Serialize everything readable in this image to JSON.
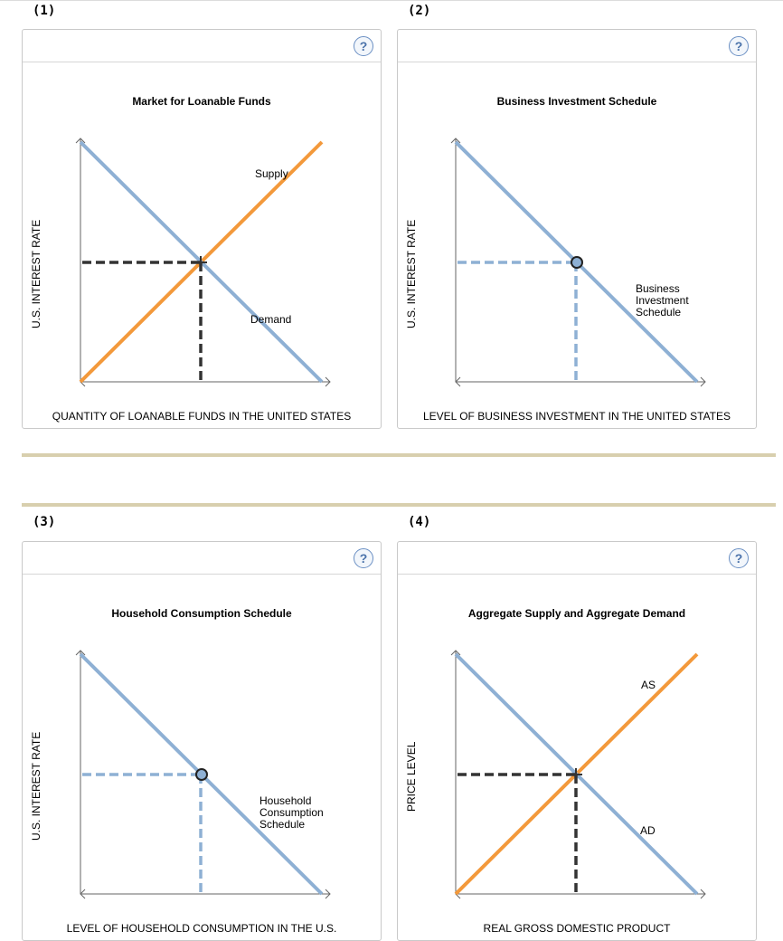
{
  "panels": [
    {
      "number": "(1)",
      "title": "Market for Loanable Funds",
      "xlabel": "QUANTITY OF LOANABLE FUNDS IN THE UNITED STATES",
      "ylabel": "U.S. INTEREST RATE",
      "help": "?",
      "curves": [
        {
          "label": "Supply",
          "color": "#f3993b",
          "direction": "up"
        },
        {
          "label": "Demand",
          "color": "#8eb0d4",
          "direction": "down"
        }
      ],
      "equilibrium_marker": "cross",
      "guide_color": "#333333"
    },
    {
      "number": "(2)",
      "title": "Business Investment Schedule",
      "xlabel": "LEVEL OF BUSINESS INVESTMENT IN THE UNITED STATES",
      "ylabel": "U.S. INTEREST RATE",
      "help": "?",
      "curves": [
        {
          "label": "Business\nInvestment\nSchedule",
          "color": "#8eb0d4",
          "direction": "down"
        }
      ],
      "equilibrium_marker": "circle",
      "guide_color": "#8eb0d4"
    },
    {
      "number": "(3)",
      "title": "Household Consumption Schedule",
      "xlabel": "LEVEL OF HOUSEHOLD CONSUMPTION IN THE U.S.",
      "ylabel": "U.S. INTEREST RATE",
      "help": "?",
      "curves": [
        {
          "label": "Household\nConsumption\nSchedule",
          "color": "#8eb0d4",
          "direction": "down"
        }
      ],
      "equilibrium_marker": "circle",
      "guide_color": "#8eb0d4"
    },
    {
      "number": "(4)",
      "title": "Aggregate Supply and Aggregate Demand",
      "xlabel": "REAL GROSS DOMESTIC PRODUCT",
      "ylabel": "PRICE LEVEL",
      "help": "?",
      "curves": [
        {
          "label": "AS",
          "color": "#f3993b",
          "direction": "up"
        },
        {
          "label": "AD",
          "color": "#8eb0d4",
          "direction": "down"
        }
      ],
      "equilibrium_marker": "cross",
      "guide_color": "#333333"
    }
  ]
}
